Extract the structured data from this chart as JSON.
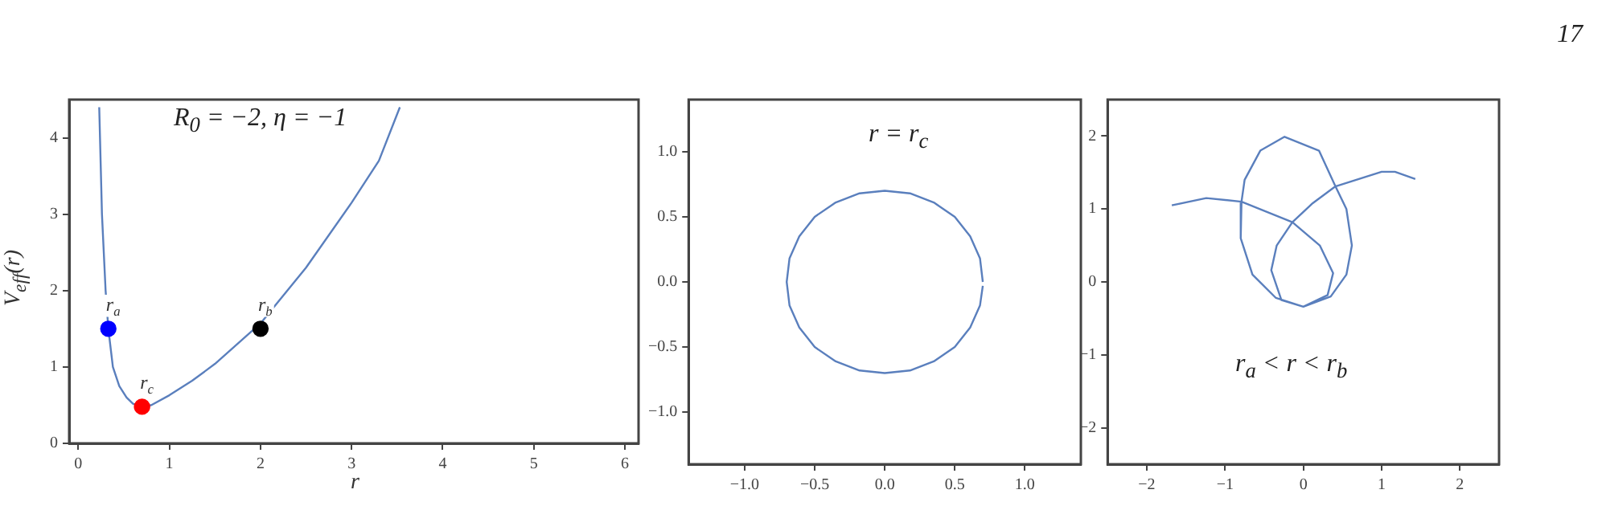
{
  "chart_data": [
    {
      "type": "line",
      "xlabel": "r",
      "ylabel": "V$_{eff}$(r)",
      "xlim": [
        -0.1,
        6.15
      ],
      "ylim": [
        0,
        4.5
      ],
      "xticks": [
        0,
        1,
        2,
        3,
        4,
        5,
        6
      ],
      "yticks": [
        0,
        1,
        2,
        3,
        4
      ],
      "grid": false,
      "legend": false,
      "marker": "none",
      "line_style": "solid",
      "annotations": [
        "R$_{0}$ = −2, η = −1",
        {
          "text": "r$_{a}$",
          "x": 0.33,
          "y": 1.5
        },
        {
          "text": "r$_{b}$",
          "x": 2,
          "y": 1.5
        },
        {
          "text": "r$_{c}$",
          "x": 0.7,
          "y": 0.48
        }
      ],
      "series": [
        {
          "type": "line",
          "color": "#5a7fbd",
          "x": [
            0.23,
            0.26,
            0.3,
            0.33,
            0.38,
            0.45,
            0.53,
            0.6,
            0.7,
            0.8,
            1.0,
            1.25,
            1.5,
            2.0,
            2.5,
            3.0,
            3.3,
            3.53
          ],
          "values": [
            4.4,
            3.0,
            2.0,
            1.5,
            1.0,
            0.75,
            0.6,
            0.52,
            0.48,
            0.5,
            0.63,
            0.82,
            1.04,
            1.57,
            2.3,
            3.15,
            3.7,
            4.4
          ]
        },
        {
          "type": "scatter",
          "marker": "circle",
          "colors": [
            "#0000ff",
            "#000000",
            "#ff0000"
          ],
          "x": [
            0.33,
            2,
            0.7
          ],
          "values": [
            1.5,
            1.5,
            0.48
          ]
        }
      ]
    },
    {
      "type": "line",
      "xlim": [
        -1.4,
        1.4
      ],
      "ylim": [
        -1.4,
        1.4
      ],
      "xticks": [
        {
          "value": -1,
          "label": "−1.0"
        },
        {
          "value": -0.5,
          "label": "−0.5"
        },
        {
          "value": 0,
          "label": "0.0"
        },
        {
          "value": 0.5,
          "label": "0.5"
        },
        {
          "value": 1,
          "label": "1.0"
        }
      ],
      "yticks": [
        {
          "value": -1,
          "label": "−1.0"
        },
        {
          "value": -0.5,
          "label": "−0.5"
        },
        {
          "value": 0,
          "label": "0.0"
        },
        {
          "value": 0.5,
          "label": "0.5"
        },
        {
          "value": 1,
          "label": "1.0"
        }
      ],
      "grid": false,
      "legend": false,
      "marker": "none",
      "line_style": "solid",
      "annotations": [
        "r = r$_{c}$"
      ],
      "series": [
        {
          "type": "line",
          "color": "#5a7fbd",
          "x": [
            0.7,
            0.68,
            0.61,
            0.5,
            0.35,
            0.18,
            0,
            -0.18,
            -0.35,
            -0.5,
            -0.61,
            -0.68,
            -0.7,
            -0.68,
            -0.61,
            -0.5,
            -0.35,
            -0.18,
            0,
            0.18,
            0.35,
            0.5,
            0.61,
            0.68,
            0.7
          ],
          "values": [
            0,
            0.18,
            0.35,
            0.5,
            0.61,
            0.68,
            0.7,
            0.68,
            0.61,
            0.5,
            0.35,
            0.18,
            0,
            -0.18,
            -0.35,
            -0.5,
            -0.61,
            -0.68,
            -0.7,
            -0.68,
            -0.61,
            -0.5,
            -0.35,
            -0.18,
            -0.03
          ]
        }
      ]
    },
    {
      "type": "line",
      "xlim": [
        -2.5,
        2.5
      ],
      "ylim": [
        -2.5,
        2.5
      ],
      "xticks": [
        {
          "value": -2,
          "label": "−2"
        },
        {
          "value": -1,
          "label": "−1"
        },
        0,
        1,
        2
      ],
      "yticks": [
        {
          "value": -2,
          "label": "−2"
        },
        {
          "value": -1,
          "label": "−1"
        },
        0,
        1,
        2
      ],
      "grid": false,
      "legend": false,
      "marker": "none",
      "line_style": "solid",
      "annotations": [
        "r$_{a}$ < r < r$_{b}$",
        "17"
      ],
      "series": [
        {
          "type": "line",
          "color": "#5a7fbd",
          "x": [
            -1.68,
            -1.24,
            -0.79,
            -0.14,
            0.21,
            0.38,
            0.31,
            0,
            0.35,
            0.55,
            0.62,
            0.55,
            0.41,
            0.2,
            -0.24,
            -0.55,
            -0.75,
            -0.79,
            -0.8,
            -0.65,
            -0.35,
            0,
            -0.28,
            -0.41,
            -0.34,
            -0.14,
            0.12,
            0.41,
            1.0,
            1.17,
            1.43
          ],
          "values": [
            1.05,
            1.15,
            1.1,
            0.82,
            0.5,
            0.12,
            -0.18,
            -0.34,
            -0.2,
            0.1,
            0.5,
            1.0,
            1.31,
            1.8,
            1.99,
            1.8,
            1.4,
            1.1,
            0.6,
            0.1,
            -0.22,
            -0.34,
            -0.25,
            0.16,
            0.5,
            0.82,
            1.08,
            1.31,
            1.51,
            1.51,
            1.41
          ]
        }
      ]
    }
  ]
}
